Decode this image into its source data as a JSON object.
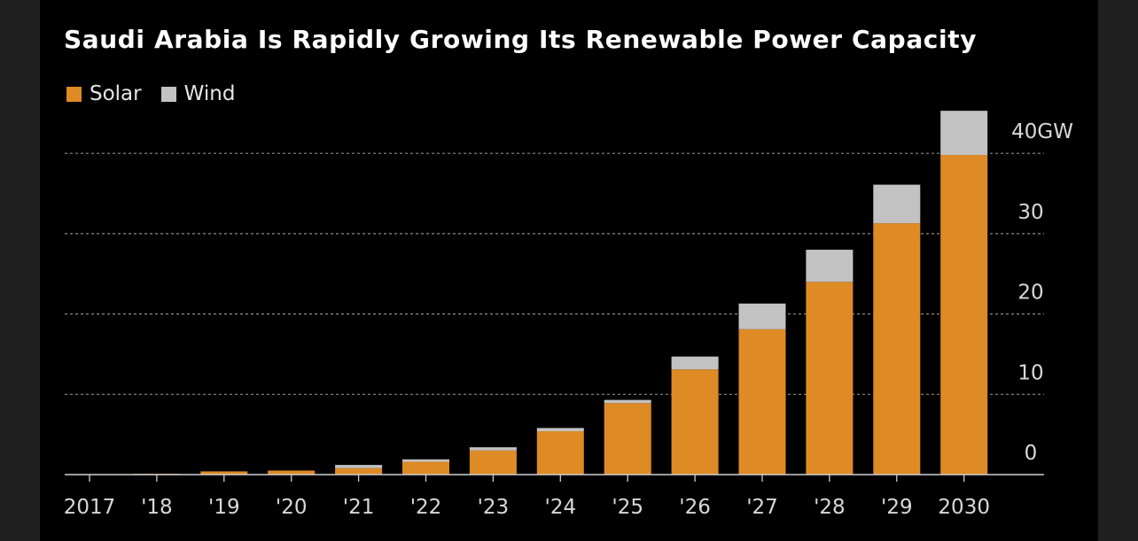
{
  "title": "Saudi Arabia Is Rapidly Growing Its Renewable Power Capacity",
  "legend": [
    {
      "name": "Solar",
      "color": "#de8b26"
    },
    {
      "name": "Wind",
      "color": "#c2c2c2"
    }
  ],
  "chart_data": {
    "type": "bar",
    "stacked": true,
    "title": "Saudi Arabia Is Rapidly Growing Its Renewable Power Capacity",
    "categories": [
      "2017",
      "'18",
      "'19",
      "'20",
      "'21",
      "'22",
      "'23",
      "'24",
      "'25",
      "'26",
      "'27",
      "'28",
      "'29",
      "2030"
    ],
    "series": [
      {
        "name": "Solar",
        "color": "#de8b26",
        "values": [
          0,
          0.1,
          0.4,
          0.5,
          0.8,
          1.6,
          3.0,
          5.4,
          8.9,
          13.1,
          18.1,
          24.0,
          31.3,
          39.8
        ]
      },
      {
        "name": "Wind",
        "color": "#c2c2c2",
        "values": [
          0,
          0,
          0,
          0,
          0.4,
          0.3,
          0.4,
          0.4,
          0.4,
          1.6,
          3.2,
          4.0,
          4.8,
          5.5
        ]
      }
    ],
    "ylim": [
      0,
      45
    ],
    "yticks": [
      0,
      10,
      20,
      30,
      40
    ],
    "ytick_labels": [
      "0",
      "10",
      "20",
      "30",
      "40GW"
    ],
    "grid": true,
    "legend_position": "top-left",
    "xlabel": "",
    "ylabel": ""
  }
}
